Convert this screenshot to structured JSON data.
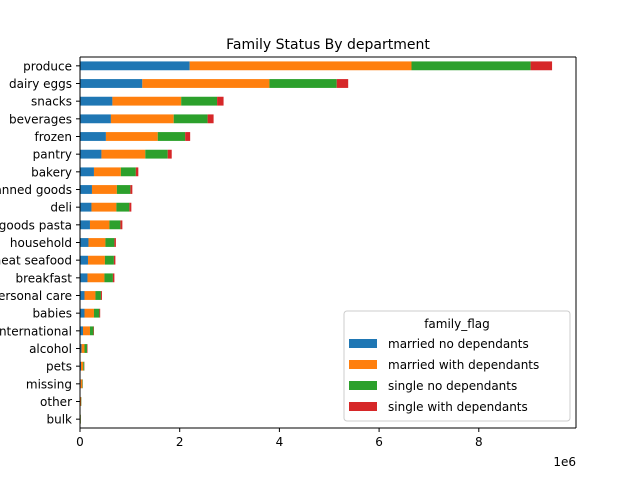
{
  "chart_data": {
    "type": "bar",
    "orientation": "horizontal",
    "stacked": true,
    "title": "Family Status By department",
    "xlabel": "",
    "ylabel": "",
    "xlim": [
      0,
      9950000
    ],
    "x_ticks": [
      0,
      2000000,
      4000000,
      6000000,
      8000000
    ],
    "x_tick_labels": [
      "0",
      "2",
      "4",
      "6",
      "8"
    ],
    "x_offset_label": "1e6",
    "grid": false,
    "legend": {
      "title": "family_flag",
      "placement": "lower-right"
    },
    "categories": [
      "produce",
      "dairy eggs",
      "snacks",
      "beverages",
      "frozen",
      "pantry",
      "bakery",
      "canned goods",
      "deli",
      "dry goods pasta",
      "household",
      "meat seafood",
      "breakfast",
      "personal care",
      "babies",
      "international",
      "alcohol",
      "pets",
      "missing",
      "other",
      "bulk"
    ],
    "series": [
      {
        "name": "married no dependants",
        "color": "#1f77b4",
        "values": [
          2200000,
          1250000,
          650000,
          620000,
          520000,
          430000,
          280000,
          240000,
          230000,
          200000,
          170000,
          160000,
          150000,
          90000,
          90000,
          60000,
          30000,
          20000,
          15000,
          8000,
          5000
        ]
      },
      {
        "name": "married with dependants",
        "color": "#ff7f0e",
        "values": [
          4450000,
          2550000,
          1380000,
          1260000,
          1040000,
          880000,
          540000,
          500000,
          500000,
          390000,
          340000,
          340000,
          340000,
          220000,
          190000,
          140000,
          60000,
          45000,
          30000,
          12000,
          8000
        ]
      },
      {
        "name": "single no dependants",
        "color": "#2ca02c",
        "values": [
          2390000,
          1350000,
          720000,
          680000,
          550000,
          450000,
          300000,
          270000,
          260000,
          220000,
          180000,
          180000,
          170000,
          110000,
          110000,
          70000,
          50000,
          20000,
          10000,
          6000,
          5000
        ]
      },
      {
        "name": "single with dependants",
        "color": "#d62728",
        "values": [
          430000,
          230000,
          130000,
          120000,
          100000,
          80000,
          50000,
          40000,
          40000,
          40000,
          30000,
          30000,
          30000,
          20000,
          15000,
          10000,
          10000,
          5000,
          3000,
          2000,
          1000
        ]
      }
    ]
  }
}
